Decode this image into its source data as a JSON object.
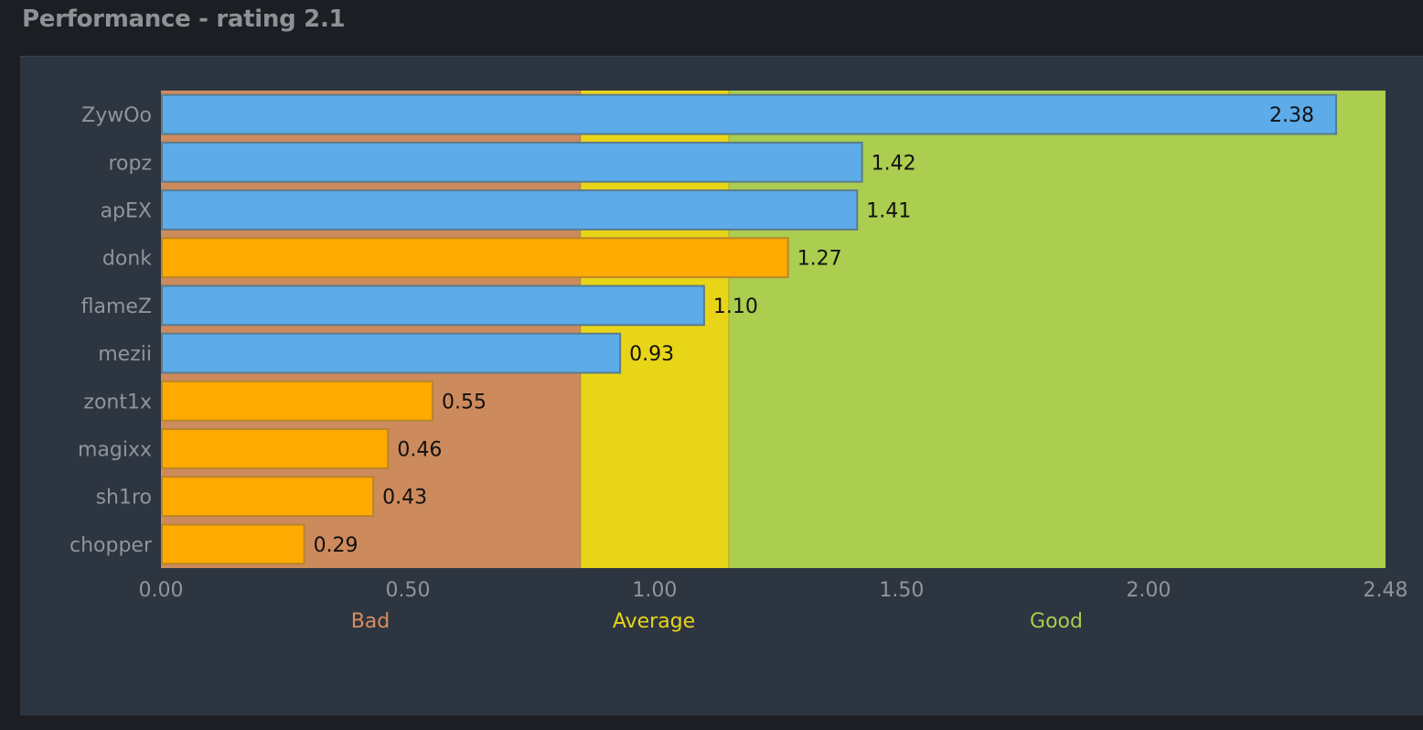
{
  "header": {
    "title": "Performance - rating 2.1"
  },
  "colors": {
    "page_background": "#1c1e23",
    "panel_background": "#2d3541",
    "zone_bad": "#cd8a5c",
    "zone_average": "#e9d518",
    "zone_good": "#abcd50",
    "bar_blue": "#5dabe8",
    "bar_blue_border": "#5a7c8c",
    "bar_orange": "#ffaa00",
    "bar_orange_border": "#b9862a"
  },
  "chart_data": {
    "type": "bar",
    "orientation": "horizontal",
    "title": "Performance - rating 2.1",
    "xlim": [
      0,
      2.48
    ],
    "x_ticks": [
      "0.00",
      "0.50",
      "1.00",
      "1.50",
      "2.00",
      "2.48"
    ],
    "x_tick_values": [
      0,
      0.5,
      1.0,
      1.5,
      2.0,
      2.48
    ],
    "zones": [
      {
        "label": "Bad",
        "from": 0,
        "to": 0.85,
        "color": "#cd8a5c",
        "label_color": "#d98c5f"
      },
      {
        "label": "Average",
        "from": 0.85,
        "to": 1.15,
        "color": "#e9d518",
        "label_color": "#e7d41a"
      },
      {
        "label": "Good",
        "from": 1.15,
        "to": 2.48,
        "color": "#abcd50",
        "label_color": "#a9cb4d"
      }
    ],
    "bars": [
      {
        "category": "ZywOo",
        "value": 2.38,
        "label": "2.38",
        "team": "blue",
        "label_inside": true
      },
      {
        "category": "ropz",
        "value": 1.42,
        "label": "1.42",
        "team": "blue"
      },
      {
        "category": "apEX",
        "value": 1.41,
        "label": "1.41",
        "team": "blue"
      },
      {
        "category": "donk",
        "value": 1.27,
        "label": "1.27",
        "team": "orange"
      },
      {
        "category": "flameZ",
        "value": 1.1,
        "label": "1.10",
        "team": "blue"
      },
      {
        "category": "mezii",
        "value": 0.93,
        "label": "0.93",
        "team": "blue"
      },
      {
        "category": "zont1x",
        "value": 0.55,
        "label": "0.55",
        "team": "orange"
      },
      {
        "category": "magixx",
        "value": 0.46,
        "label": "0.46",
        "team": "orange"
      },
      {
        "category": "sh1ro",
        "value": 0.43,
        "label": "0.43",
        "team": "orange"
      },
      {
        "category": "chopper",
        "value": 0.29,
        "label": "0.29",
        "team": "orange"
      }
    ],
    "grid": false,
    "legend": "none"
  }
}
